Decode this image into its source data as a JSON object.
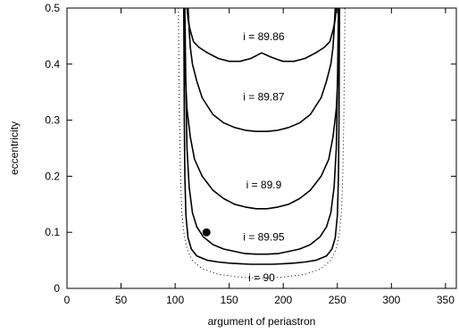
{
  "chart_data": {
    "type": "line",
    "title": "",
    "xlabel": "argument of periastron",
    "ylabel": "eccentricity",
    "xlim": [
      0,
      360
    ],
    "ylim": [
      0,
      0.5
    ],
    "grid": false,
    "xticks": [
      "0",
      "50",
      "100",
      "150",
      "200",
      "250",
      "300",
      "350"
    ],
    "yticks": [
      "0",
      "0.1",
      "0.2",
      "0.3",
      "0.4",
      "0.5"
    ],
    "series": [
      {
        "name": "i = 89.86",
        "x": [
          111,
          112,
          114,
          117,
          122,
          130,
          140,
          150,
          160,
          170,
          180,
          188,
          195,
          200,
          210,
          220,
          230,
          238,
          243,
          246,
          248,
          249
        ],
        "y": [
          0.5,
          0.48,
          0.46,
          0.44,
          0.43,
          0.42,
          0.41,
          0.405,
          0.405,
          0.41,
          0.42,
          0.413,
          0.408,
          0.405,
          0.405,
          0.41,
          0.42,
          0.43,
          0.44,
          0.46,
          0.48,
          0.5
        ]
      },
      {
        "name": "i = 89.87",
        "x": [
          112,
          113,
          114,
          116,
          120,
          125,
          135,
          145,
          155,
          165,
          175,
          180,
          185,
          195,
          205,
          215,
          225,
          235,
          240,
          244,
          246,
          247,
          248
        ],
        "y": [
          0.5,
          0.46,
          0.43,
          0.4,
          0.37,
          0.34,
          0.31,
          0.295,
          0.287,
          0.282,
          0.28,
          0.28,
          0.28,
          0.282,
          0.287,
          0.295,
          0.31,
          0.34,
          0.37,
          0.4,
          0.43,
          0.46,
          0.5
        ]
      },
      {
        "name": "i = 89.9",
        "x": [
          108,
          109,
          111,
          114,
          118,
          125,
          135,
          145,
          155,
          165,
          175,
          180,
          185,
          195,
          205,
          215,
          225,
          235,
          242,
          246,
          249,
          251,
          252
        ],
        "y": [
          0.5,
          0.4,
          0.32,
          0.27,
          0.23,
          0.2,
          0.175,
          0.16,
          0.15,
          0.145,
          0.142,
          0.142,
          0.142,
          0.145,
          0.15,
          0.16,
          0.175,
          0.2,
          0.23,
          0.27,
          0.32,
          0.4,
          0.5
        ]
      },
      {
        "name": "i = 89.95",
        "x": [
          109,
          110,
          111,
          113,
          116,
          120,
          126,
          135,
          145,
          155,
          165,
          175,
          185,
          195,
          205,
          215,
          225,
          234,
          240,
          244,
          247,
          249,
          250,
          251
        ],
        "y": [
          0.5,
          0.35,
          0.25,
          0.18,
          0.135,
          0.11,
          0.092,
          0.078,
          0.07,
          0.066,
          0.062,
          0.061,
          0.061,
          0.062,
          0.066,
          0.07,
          0.078,
          0.092,
          0.11,
          0.135,
          0.18,
          0.25,
          0.35,
          0.5
        ]
      },
      {
        "name": "i = 90",
        "x": [
          108,
          108.5,
          109,
          110,
          112,
          115,
          120,
          130,
          140,
          150,
          160,
          170,
          180,
          190,
          200,
          210,
          220,
          230,
          240,
          245,
          248,
          250,
          251,
          251.5,
          252
        ],
        "y": [
          0.5,
          0.3,
          0.2,
          0.13,
          0.09,
          0.07,
          0.058,
          0.05,
          0.047,
          0.045,
          0.044,
          0.043,
          0.043,
          0.043,
          0.044,
          0.045,
          0.047,
          0.05,
          0.058,
          0.07,
          0.09,
          0.13,
          0.2,
          0.3,
          0.5
        ]
      },
      {
        "name": "",
        "x": [
          103,
          103.5,
          104,
          105,
          106,
          108,
          111,
          116,
          125,
          140,
          160,
          180,
          200,
          220,
          235,
          244,
          249,
          252,
          254,
          255,
          256,
          256.5,
          257
        ],
        "y": [
          0.5,
          0.4,
          0.3,
          0.2,
          0.14,
          0.1,
          0.07,
          0.05,
          0.035,
          0.025,
          0.02,
          0.018,
          0.02,
          0.025,
          0.035,
          0.05,
          0.07,
          0.1,
          0.14,
          0.2,
          0.3,
          0.4,
          0.5
        ],
        "style": "dotted"
      }
    ],
    "annotations": [
      {
        "text": "i = 89.86",
        "x": 182,
        "y": 0.443
      },
      {
        "text": "i = 89.87",
        "x": 182,
        "y": 0.335
      },
      {
        "text": "i = 89.9",
        "x": 182,
        "y": 0.178
      },
      {
        "text": "i = 89.95",
        "x": 182,
        "y": 0.085
      },
      {
        "text": "i = 90",
        "x": 180,
        "y": 0.013
      }
    ],
    "marker": {
      "x": 129,
      "y": 0.1
    }
  }
}
